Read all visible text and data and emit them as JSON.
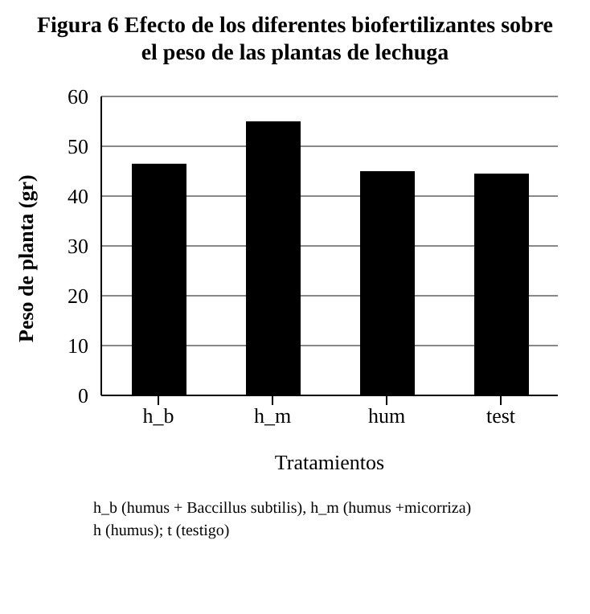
{
  "chart_data": {
    "type": "bar",
    "title": "Figura 6 Efecto de los diferentes biofertilizantes sobre el peso de las plantas de lechuga",
    "xlabel": "Tratamientos",
    "ylabel": "Peso de planta (gr)",
    "categories": [
      "h_b",
      "h_m",
      "hum",
      "test"
    ],
    "values": [
      46.5,
      55,
      45,
      44.5
    ],
    "color": "#000000",
    "ylim": [
      0,
      60
    ],
    "yticks": [
      0,
      10,
      20,
      30,
      40,
      50,
      60
    ],
    "grid": "y",
    "annotations": [
      "h_b (humus + Baccillus subtilis), h_m (humus +micorriza)",
      "h (humus); t (testigo)"
    ]
  }
}
